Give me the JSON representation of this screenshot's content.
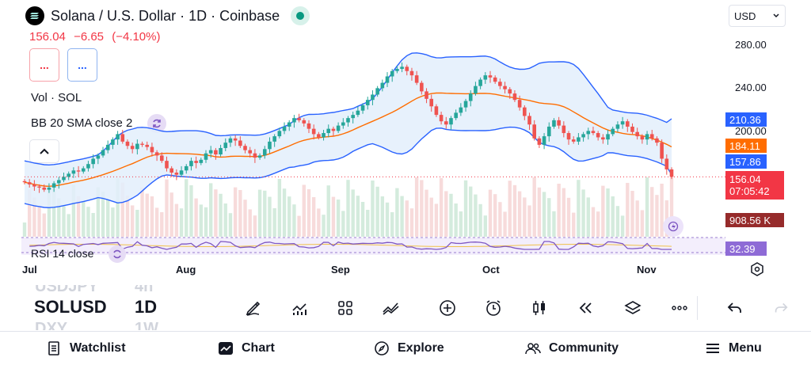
{
  "header": {
    "title": "Solana / U.S. Dollar · 1D · Coinbase",
    "logo_icon": "solana-logo",
    "market_status_color": "#089981"
  },
  "price": {
    "last": "156.04",
    "change": "−6.65",
    "change_pct": "(−4.10%)"
  },
  "ohlc_buttons": [
    "...",
    "..."
  ],
  "indicators": {
    "volume": "Vol · SOL",
    "bollinger": "BB 20 SMA close 2",
    "rsi": "RSI 14 close"
  },
  "currency": "USD",
  "y_axis_ticks": [
    "280.00",
    "240.00",
    "200.00"
  ],
  "price_tags": {
    "bb_upper": "210.36",
    "bb_basis": "184.11",
    "bb_lower": "157.86",
    "last_price": "156.04",
    "countdown": "07:05:42",
    "volume": "908.56 K",
    "rsi": "32.39"
  },
  "colors": {
    "up": "#26a69a",
    "down": "#ef5350",
    "bb_band": "#2962ff",
    "bb_basis": "#ff6d00",
    "rsi": "#7e57c2"
  },
  "x_axis_labels": [
    "Jul",
    "Aug",
    "Sep",
    "Oct",
    "Nov"
  ],
  "watchlist": {
    "above_symbol": "USDJPY",
    "above_interval": "4h",
    "current_symbol": "SOLUSD",
    "current_interval": "1D",
    "below_symbol": "DXY",
    "below_interval": "1W"
  },
  "toolbar": [
    "brush-icon",
    "indicators-icon",
    "layouts-icon",
    "compare-icon",
    "add-icon",
    "alert-icon",
    "candle-type-icon",
    "replay-icon",
    "layers-icon",
    "more-icon",
    "undo-icon",
    "redo-icon"
  ],
  "bottom_nav": {
    "watchlist": "Watchlist",
    "chart": "Chart",
    "explore": "Explore",
    "community": "Community",
    "menu": "Menu"
  },
  "chart_data": {
    "type": "candlestick",
    "symbol": "SOLUSD",
    "interval": "1D",
    "x_labels": [
      "Jul",
      "Aug",
      "Sep",
      "Oct",
      "Nov"
    ],
    "y_ticks": [
      280,
      240,
      200
    ],
    "closes": [
      151,
      149,
      147,
      146,
      144,
      146,
      150,
      153,
      156,
      159,
      162,
      161,
      164,
      168,
      173,
      176,
      181,
      186,
      191,
      196,
      189,
      185,
      182,
      187,
      186,
      184,
      179,
      176,
      171,
      164,
      160,
      158,
      162,
      166,
      171,
      169,
      172,
      178,
      181,
      177,
      183,
      188,
      192,
      190,
      185,
      181,
      178,
      174,
      176,
      182,
      189,
      194,
      199,
      203,
      207,
      211,
      209,
      206,
      201,
      196,
      193,
      197,
      201,
      199,
      204,
      207,
      211,
      214,
      218,
      223,
      228,
      233,
      239,
      244,
      250,
      255,
      257,
      259,
      255,
      251,
      244,
      236,
      229,
      222,
      214,
      208,
      205,
      211,
      216,
      221,
      227,
      234,
      241,
      247,
      251,
      249,
      245,
      241,
      238,
      234,
      228,
      221,
      213,
      205,
      192,
      186,
      194,
      203,
      209,
      204,
      197,
      191,
      189,
      193,
      196,
      199,
      197,
      193,
      191,
      196,
      201,
      205,
      208,
      203,
      198,
      194,
      191,
      196,
      192,
      188,
      173,
      163,
      156
    ],
    "bb_upper_last": 210.36,
    "bb_basis_last": 184.11,
    "bb_lower_last": 157.86,
    "last_volume": "908.56 K",
    "rsi_last": 32.39
  }
}
